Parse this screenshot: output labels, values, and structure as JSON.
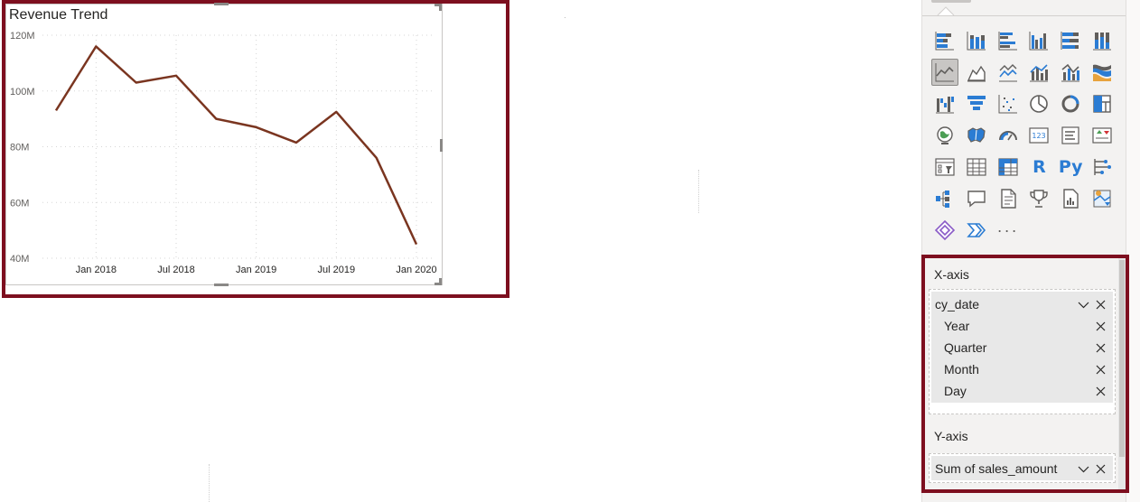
{
  "visual": {
    "title": "Revenue Trend"
  },
  "chart_data": {
    "type": "line",
    "title": "Revenue Trend",
    "xlabel": "",
    "ylabel": "",
    "x": [
      "Oct 2017",
      "Jan 2018",
      "Apr 2018",
      "Jul 2018",
      "Oct 2018",
      "Jan 2019",
      "Apr 2019",
      "Jul 2019",
      "Oct 2019",
      "Jan 2020"
    ],
    "series": [
      {
        "values": [
          93,
          116,
          103,
          105.5,
          90,
          87,
          81.5,
          92.5,
          76,
          45
        ],
        "color": "#7a3520"
      }
    ],
    "x_tick_labels": [
      "Jan 2018",
      "Jul 2018",
      "Jan 2019",
      "Jul 2019",
      "Jan 2020"
    ],
    "y_tick_labels": [
      "120M",
      "100M",
      "80M",
      "60M",
      "40M"
    ],
    "y_ticks": [
      120,
      100,
      80,
      60,
      40
    ],
    "ylim": [
      40,
      120
    ],
    "y_unit": "M",
    "grid": true
  },
  "visualizations_pane": {
    "icons": [
      [
        "stacked-bar-chart-icon",
        "stacked-column-chart-icon",
        "clustered-bar-chart-icon",
        "clustered-column-chart-icon",
        "100-stacked-bar-chart-icon",
        "100-stacked-column-chart-icon"
      ],
      [
        "line-chart-icon",
        "area-chart-icon",
        "stacked-area-chart-icon",
        "line-and-stacked-column-chart-icon",
        "line-and-clustered-column-chart-icon",
        "ribbon-chart-icon"
      ],
      [
        "waterfall-chart-icon",
        "funnel-chart-icon",
        "scatter-chart-icon",
        "pie-chart-icon",
        "donut-chart-icon",
        "treemap-icon"
      ],
      [
        "map-icon",
        "filled-map-icon",
        "gauge-icon",
        "card-icon",
        "multi-row-card-icon",
        "kpi-icon"
      ],
      [
        "slicer-icon",
        "table-icon",
        "matrix-icon",
        "r-visual-icon",
        "python-visual-icon",
        "key-influencers-icon"
      ],
      [
        "decomposition-tree-icon",
        "qa-icon",
        "smart-narrative-icon",
        "goals-icon",
        "paginated-report-icon",
        "azure-map-icon"
      ],
      [
        "power-apps-icon",
        "power-automate-icon",
        "more-visuals-icon"
      ]
    ],
    "r_label": "R",
    "py_label": "Py",
    "more_label": "···",
    "selected": "line-chart-icon"
  },
  "wells": {
    "x_axis": {
      "label": "X-axis",
      "field": "cy_date",
      "levels": [
        "Year",
        "Quarter",
        "Month",
        "Day"
      ]
    },
    "y_axis": {
      "label": "Y-axis",
      "field": "Sum of sales_amount"
    }
  },
  "colors": {
    "highlight_border": "#7d0f1f",
    "line": "#7a3520",
    "accent_blue": "#2b7cd3"
  }
}
